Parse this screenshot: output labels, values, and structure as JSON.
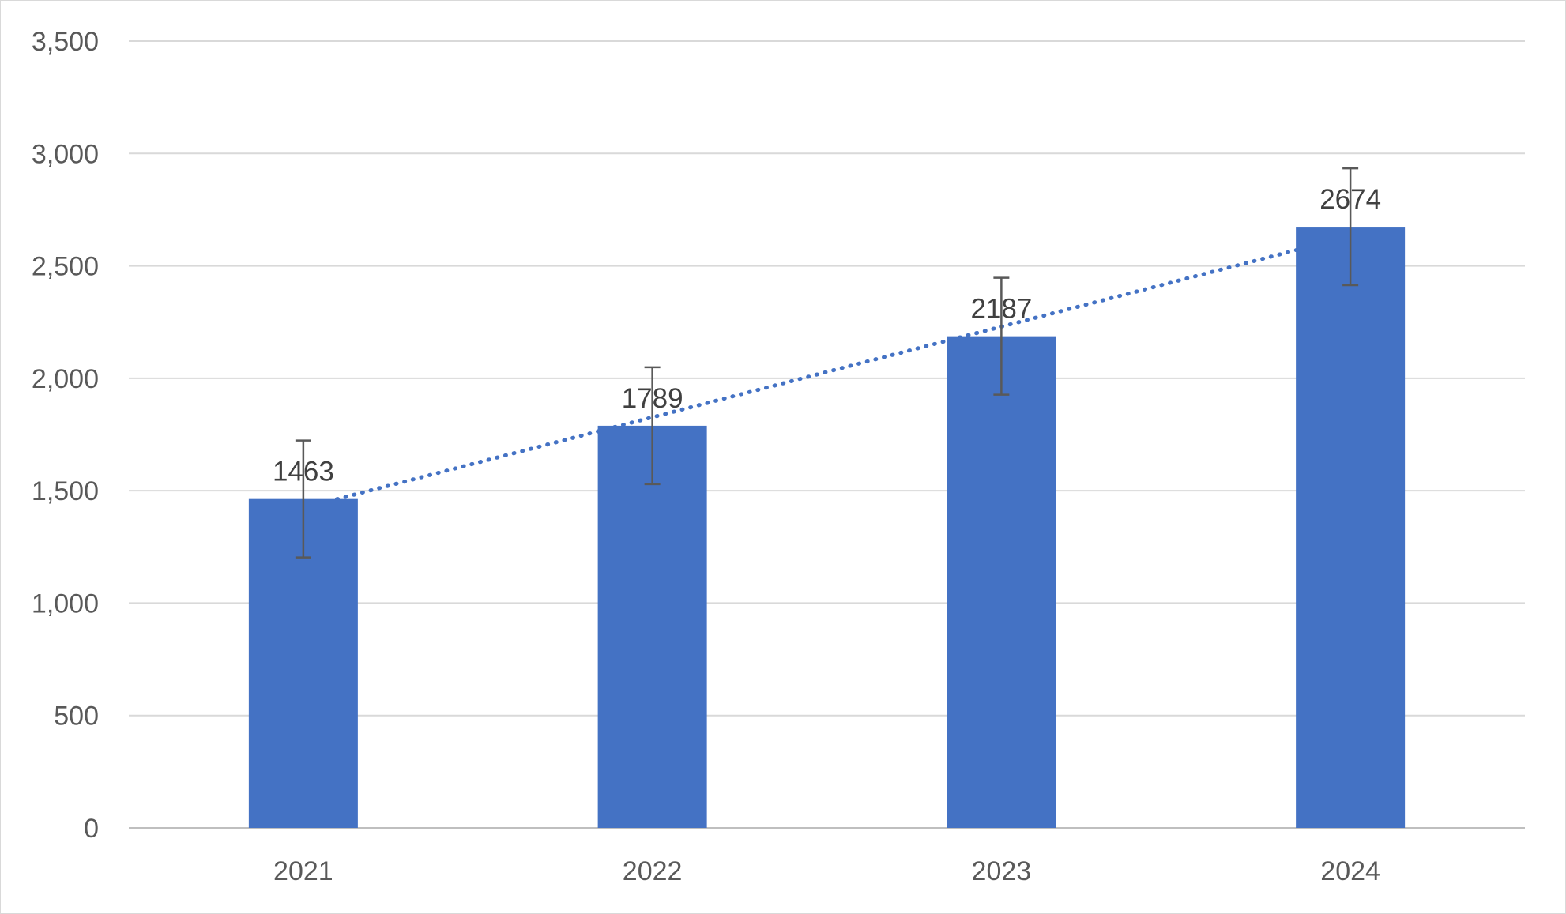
{
  "chart_data": {
    "type": "bar",
    "title": "",
    "xlabel": "",
    "ylabel": "",
    "categories": [
      "2021",
      "2022",
      "2023",
      "2024"
    ],
    "series": [
      {
        "values": [
          1463,
          1789,
          2187,
          2674
        ],
        "color": "#4472c4",
        "error_bar_half_width": 260,
        "data_labels": [
          "1463",
          "1789",
          "2187",
          "2674"
        ]
      }
    ],
    "trendline": {
      "style": "dotted",
      "type": "linear",
      "color": "#4472c4"
    },
    "ylim": [
      0,
      3500
    ],
    "y_ticks": [
      0,
      500,
      1000,
      1500,
      2000,
      2500,
      3000,
      3500
    ],
    "y_tick_labels": [
      "0",
      "500",
      "1,000",
      "1,500",
      "2,000",
      "2,500",
      "3,000",
      "3,500"
    ],
    "grid": true,
    "legend": "none",
    "colors": {
      "bar": "#4472c4",
      "grid": "#d9d9d9",
      "tick_text": "#595959",
      "label_text": "#404040",
      "error_bar": "#595959"
    }
  }
}
